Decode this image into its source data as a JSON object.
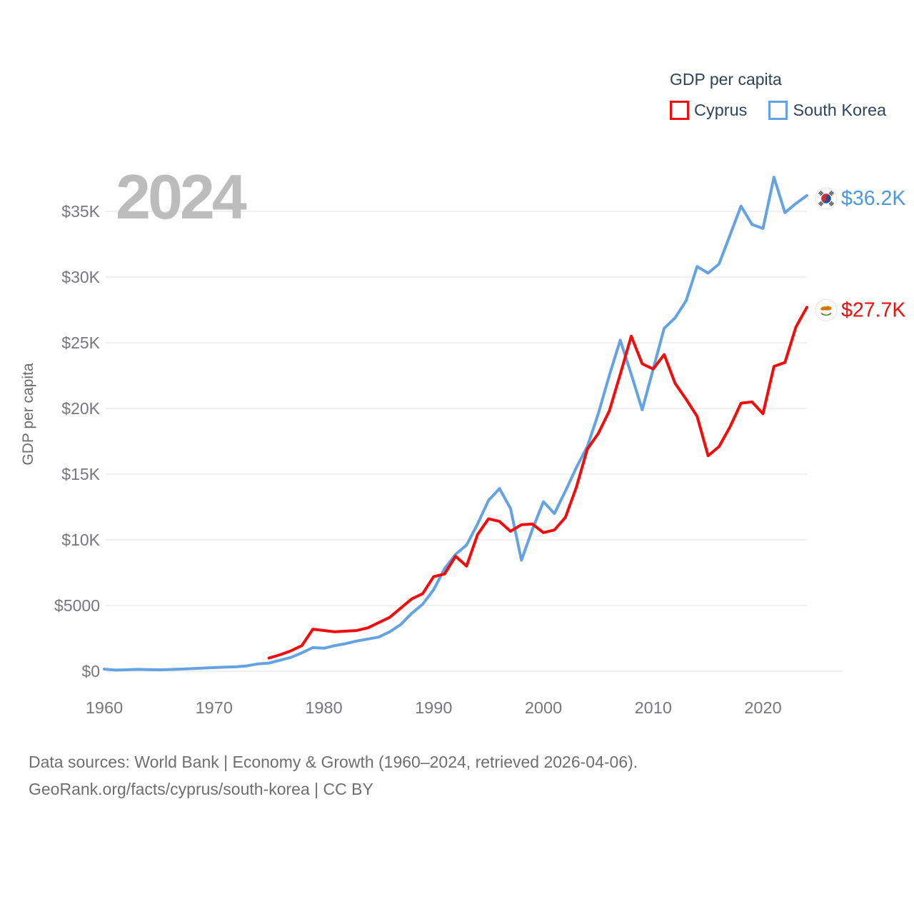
{
  "legend": {
    "title": "GDP per capita",
    "items": [
      {
        "label": "Cyprus",
        "color": "#f40b0b"
      },
      {
        "label": "South Korea",
        "color": "#63a3e3"
      }
    ]
  },
  "watermark": "2024",
  "y_axis": {
    "title": "GDP per capita",
    "ticks": [
      {
        "label": "$0",
        "value": 0
      },
      {
        "label": "$5000",
        "value": 5
      },
      {
        "label": "$10K",
        "value": 10
      },
      {
        "label": "$15K",
        "value": 15
      },
      {
        "label": "$20K",
        "value": 20
      },
      {
        "label": "$25K",
        "value": 25
      },
      {
        "label": "$30K",
        "value": 30
      },
      {
        "label": "$35K",
        "value": 35
      }
    ]
  },
  "x_axis": {
    "ticks": [
      1960,
      1970,
      1980,
      1990,
      2000,
      2010,
      2020
    ]
  },
  "end_labels": [
    {
      "series": "South Korea",
      "text": "$36.2K",
      "flag": "south-korea",
      "color": "#4a97e4"
    },
    {
      "series": "Cyprus",
      "text": "$27.7K",
      "flag": "cyprus",
      "color": "#f40b0b"
    }
  ],
  "footer": {
    "line1": "Data sources: World Bank | Economy & Growth (1960–2024, retrieved 2026-04-06).",
    "line2": "GeoRank.org/facts/cyprus/south-korea | CC BY"
  },
  "chart_data": {
    "type": "line",
    "title": "GDP per capita",
    "x_range": [
      1960,
      2024
    ],
    "y_unit": "thousand US$ per person",
    "ylim": [
      0,
      37.6
    ],
    "grid": "horizontal",
    "legend_position": "top-right",
    "series": [
      {
        "name": "South Korea",
        "color": "#63a3e3",
        "start_year": 1960,
        "end_value_label": "$36.2K",
        "values_usd_k": [
          0.16,
          0.09,
          0.11,
          0.14,
          0.12,
          0.11,
          0.13,
          0.16,
          0.2,
          0.24,
          0.28,
          0.31,
          0.33,
          0.41,
          0.56,
          0.62,
          0.83,
          1.05,
          1.4,
          1.8,
          1.75,
          1.95,
          2.1,
          2.3,
          2.45,
          2.6,
          3.0,
          3.55,
          4.4,
          5.1,
          6.2,
          7.8,
          8.9,
          9.6,
          11.2,
          13.0,
          13.9,
          12.4,
          8.45,
          10.8,
          12.9,
          12.0,
          13.7,
          15.5,
          17.1,
          19.6,
          22.5,
          25.2,
          22.6,
          19.9,
          23.0,
          26.1,
          26.9,
          28.2,
          30.8,
          30.3,
          31.0,
          33.2,
          35.4,
          34.0,
          33.7,
          37.6,
          34.9,
          35.6,
          36.2
        ]
      },
      {
        "name": "Cyprus",
        "color": "#f40b0b",
        "start_year": 1975,
        "end_value_label": "$27.7K",
        "values_usd_k": [
          1.0,
          1.25,
          1.55,
          1.95,
          3.2,
          3.1,
          3.0,
          3.05,
          3.1,
          3.3,
          3.7,
          4.1,
          4.8,
          5.5,
          5.9,
          7.2,
          7.4,
          8.75,
          8.0,
          10.4,
          11.6,
          11.4,
          10.65,
          11.15,
          11.2,
          10.55,
          10.75,
          11.7,
          14.0,
          16.9,
          18.1,
          19.8,
          22.6,
          25.5,
          23.4,
          23.0,
          24.1,
          21.9,
          20.7,
          19.4,
          16.4,
          17.1,
          18.6,
          20.4,
          20.5,
          19.6,
          23.2,
          23.5,
          26.2,
          27.7
        ]
      }
    ]
  }
}
